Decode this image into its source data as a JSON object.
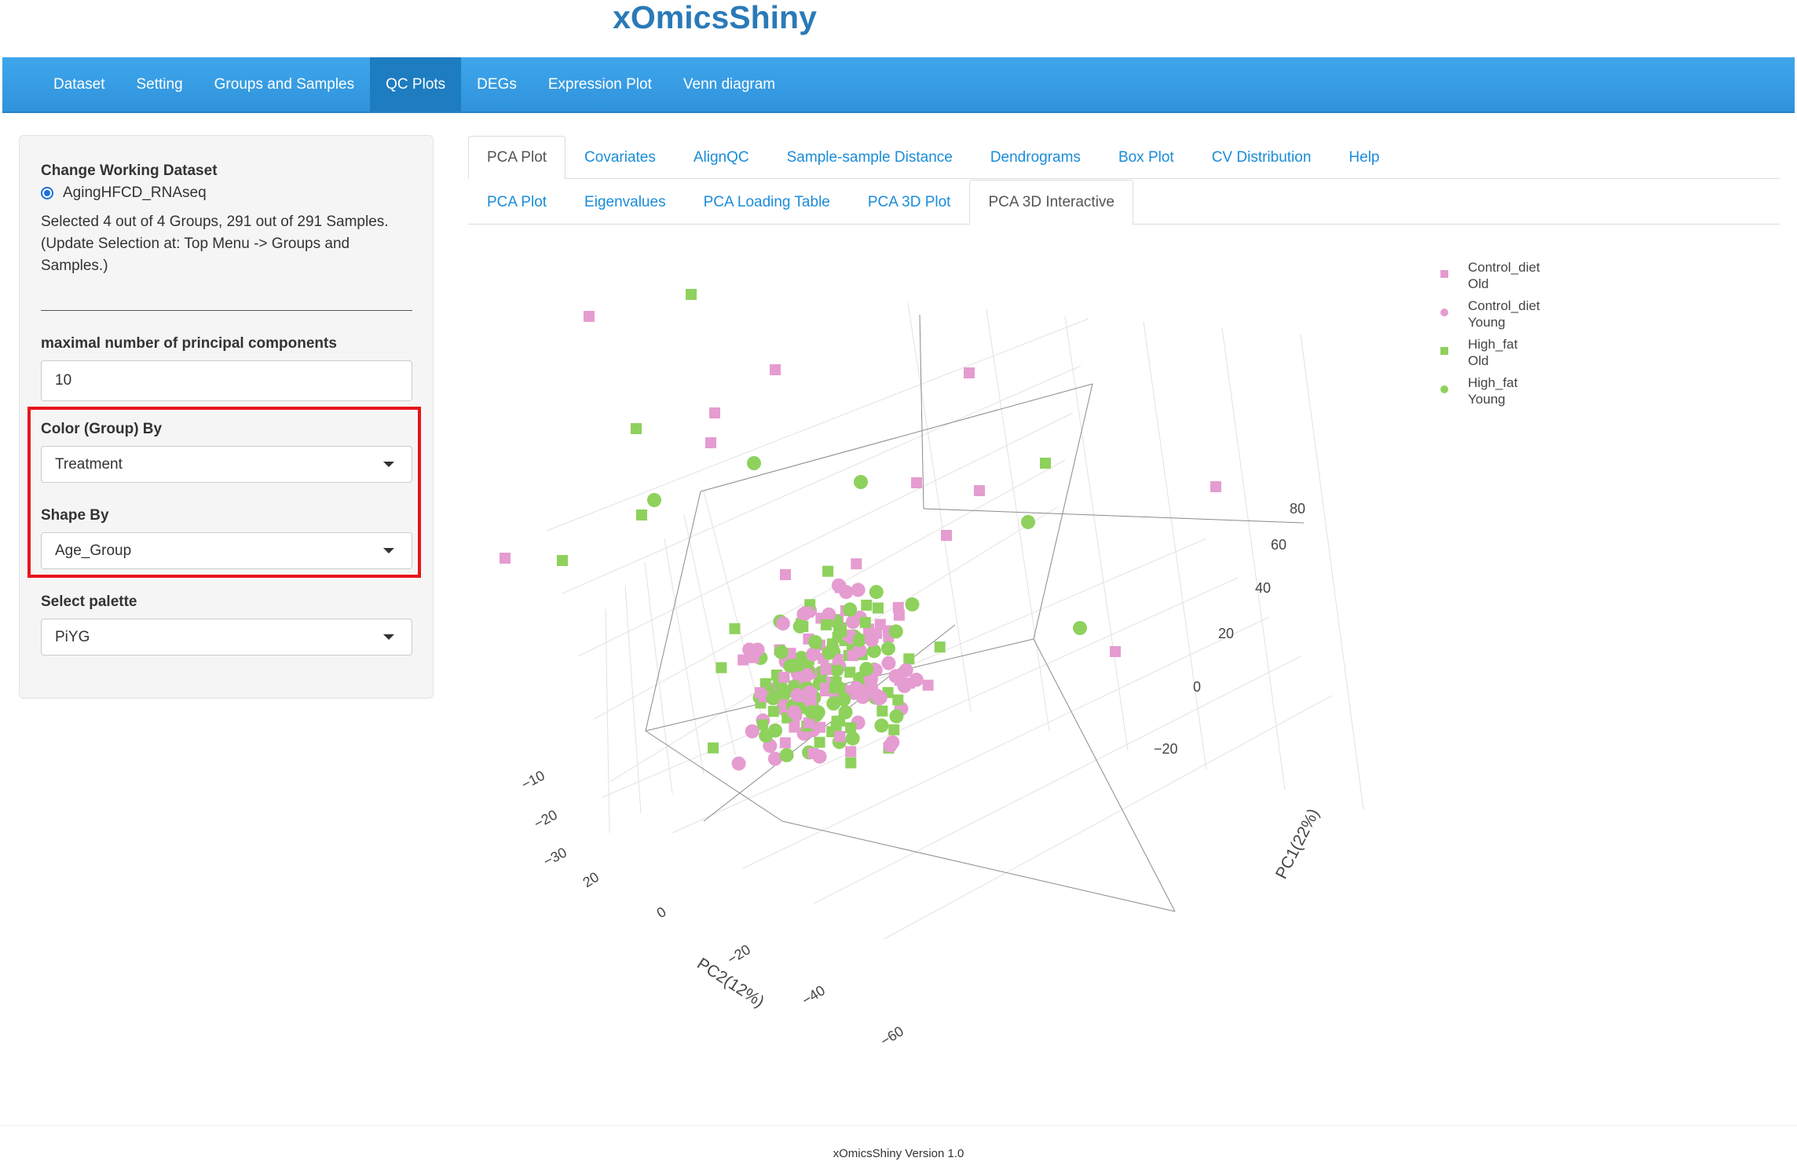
{
  "app_title": "xOmicsShiny",
  "navbar": {
    "items": [
      "Dataset",
      "Setting",
      "Groups and Samples",
      "QC Plots",
      "DEGs",
      "Expression Plot",
      "Venn diagram"
    ],
    "active": "QC Plots"
  },
  "sidebar": {
    "dataset_heading": "Change Working Dataset",
    "dataset_option": "AgingHFCD_RNAseq",
    "selection_info": [
      "Selected 4 out of 4 Groups, 291 out of 291 Samples.",
      "(Update Selection at: Top Menu -> Groups and",
      "Samples.)"
    ],
    "max_pc_label": "maximal number of principal components",
    "max_pc_value": "10",
    "color_by_label": "Color (Group) By",
    "color_by_value": "Treatment",
    "shape_by_label": "Shape By",
    "shape_by_value": "Age_Group",
    "palette_label": "Select palette",
    "palette_value": "PiYG"
  },
  "tabs_row1": [
    "PCA Plot",
    "Covariates",
    "AlignQC",
    "Sample-sample Distance",
    "Dendrograms",
    "Box Plot",
    "CV Distribution",
    "Help"
  ],
  "tabs_row1_active": "PCA Plot",
  "tabs_row2": [
    "PCA Plot",
    "Eigenvalues",
    "PCA Loading Table",
    "PCA 3D Plot",
    "PCA 3D Interactive"
  ],
  "tabs_row2_active": "PCA 3D Interactive",
  "colors": {
    "pink": "#e59cd0",
    "green": "#8ed15c",
    "highlight": "#e8141a",
    "nav_bg": "#3fa6ec",
    "link": "#1a8cd8"
  },
  "legend": [
    {
      "label": "Control_diet\nOld",
      "color": "pink",
      "shape": "square"
    },
    {
      "label": "Control_diet\nYoung",
      "color": "pink",
      "shape": "circle"
    },
    {
      "label": "High_fat\nOld",
      "color": "green",
      "shape": "square"
    },
    {
      "label": "High_fat\nYoung",
      "color": "green",
      "shape": "circle"
    }
  ],
  "axes": {
    "pc1_title": "PC1(22%)",
    "pc2_title": "PC2(12%)",
    "pc1_ticks": [
      "80",
      "60",
      "40",
      "20",
      "0",
      "−20"
    ],
    "pc2_ticks": [
      "20",
      "0",
      "−20",
      "−40",
      "−60"
    ],
    "pc3_ticks": [
      "−10",
      "−20",
      "−30"
    ]
  },
  "footer": "xOmicsShiny Version 1.0"
}
